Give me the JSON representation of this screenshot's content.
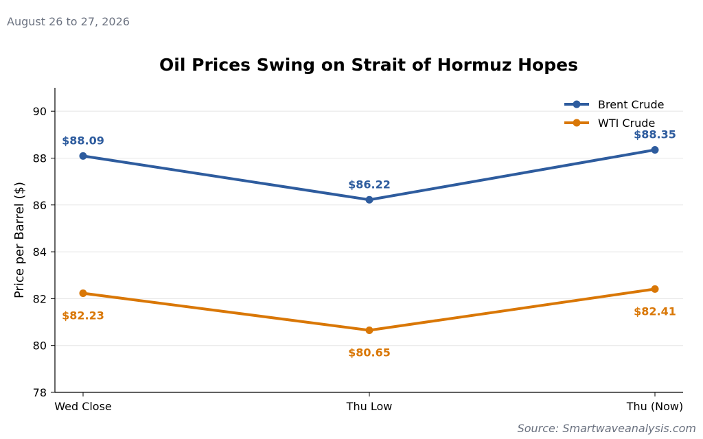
{
  "header": {
    "date_range": "August 26 to 27, 2026"
  },
  "footer": {
    "source": "Source: Smartwaveanalysis.com"
  },
  "chart_data": {
    "type": "line",
    "title": "Oil Prices Swing on Strait of Hormuz Hopes",
    "xlabel": "",
    "ylabel": "Price per Barrel ($)",
    "categories": [
      "Wed Close",
      "Thu Low",
      "Thu (Now)"
    ],
    "ylim": [
      78,
      91
    ],
    "yticks": [
      78,
      80,
      82,
      84,
      86,
      88,
      90
    ],
    "grid": true,
    "legend_position": "top-right",
    "series": [
      {
        "name": "Brent Crude",
        "color": "#2e5c9e",
        "values": [
          88.09,
          86.22,
          88.35
        ],
        "labels": [
          "$88.09",
          "$86.22",
          "$88.35"
        ],
        "label_side": "above"
      },
      {
        "name": "WTI Crude",
        "color": "#d97706",
        "values": [
          82.23,
          80.65,
          82.41
        ],
        "labels": [
          "$82.23",
          "$80.65",
          "$82.41"
        ],
        "label_side": "below"
      }
    ]
  }
}
